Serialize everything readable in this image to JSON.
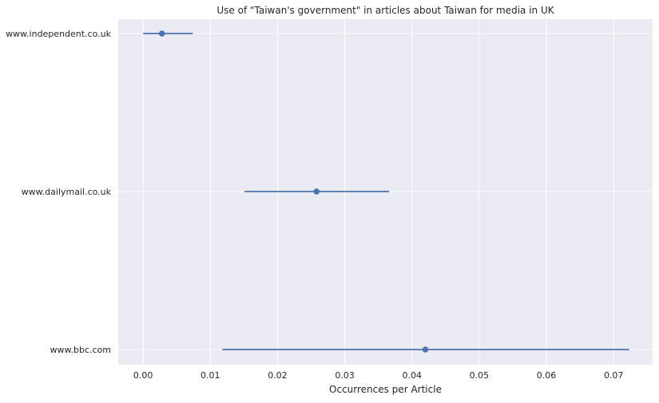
{
  "chart_data": {
    "type": "scatter",
    "title": "Use of \"Taiwan's government\" in articles about Taiwan for media in UK",
    "xlabel": "Occurrences per Article",
    "ylabel": "",
    "xlim": [
      -0.0037,
      0.0758
    ],
    "x_ticks": [
      0.0,
      0.01,
      0.02,
      0.03,
      0.04,
      0.05,
      0.06,
      0.07
    ],
    "x_tick_labels": [
      "0.00",
      "0.01",
      "0.02",
      "0.03",
      "0.04",
      "0.05",
      "0.06",
      "0.07"
    ],
    "grid": true,
    "categories": [
      "www.independent.co.uk",
      "www.dailymail.co.uk",
      "www.bbc.com"
    ],
    "series": [
      {
        "values": [
          0.0028,
          0.0258,
          0.042
        ],
        "ci_low": [
          0.0,
          0.0151,
          0.0118
        ],
        "ci_high": [
          0.0074,
          0.0366,
          0.0723
        ]
      }
    ],
    "colors": {
      "background": "#eaeaf2",
      "grid": "#ffffff",
      "series": "#4c72b0",
      "text": "#262626"
    }
  }
}
